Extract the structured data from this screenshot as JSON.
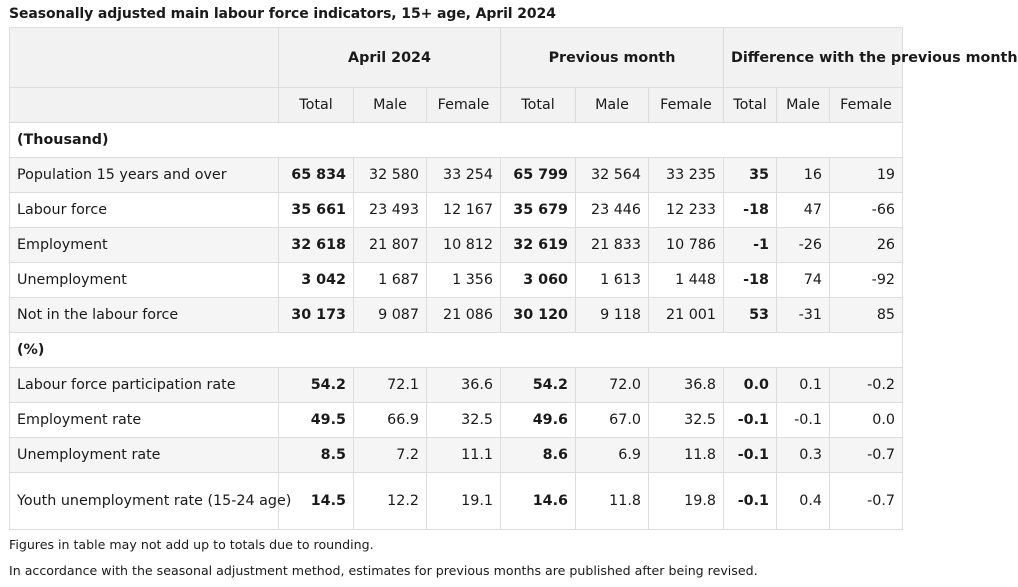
{
  "title": "Seasonally adjusted main labour force indicators, 15+ age, April 2024",
  "table": {
    "group_headers": [
      "April 2024",
      "Previous month",
      "Difference with the previous month"
    ],
    "sub_headers": [
      "Total",
      "Male",
      "Female",
      "Total",
      "Male",
      "Female",
      "Total",
      "Male",
      "Female"
    ],
    "section_thousand": "(Thousand)",
    "section_percent": "(%)",
    "rows": [
      {
        "label": "Population 15 years and over",
        "cells": [
          "65 834",
          "32 580",
          "33 254",
          "65 799",
          "32 564",
          "33 235",
          "35",
          "16",
          "19"
        ]
      },
      {
        "label": "Labour force",
        "cells": [
          "35 661",
          "23 493",
          "12 167",
          "35 679",
          "23 446",
          "12 233",
          "-18",
          "47",
          "-66"
        ]
      },
      {
        "label": "Employment",
        "cells": [
          "32 618",
          "21 807",
          "10 812",
          "32 619",
          "21 833",
          "10 786",
          "-1",
          "-26",
          "26"
        ]
      },
      {
        "label": "Unemployment",
        "cells": [
          "3 042",
          "1 687",
          "1 356",
          "3 060",
          "1 613",
          "1 448",
          "-18",
          "74",
          "-92"
        ]
      },
      {
        "label": "Not in the labour force",
        "cells": [
          "30 173",
          "9 087",
          "21 086",
          "30 120",
          "9 118",
          "21 001",
          "53",
          "-31",
          "85"
        ]
      },
      {
        "label": "Labour force participation rate",
        "cells": [
          "54.2",
          "72.1",
          "36.6",
          "54.2",
          "72.0",
          "36.8",
          "0.0",
          "0.1",
          "-0.2"
        ]
      },
      {
        "label": "Employment rate",
        "cells": [
          "49.5",
          "66.9",
          "32.5",
          "49.6",
          "67.0",
          "32.5",
          "-0.1",
          "-0.1",
          "0.0"
        ]
      },
      {
        "label": "Unemployment rate",
        "cells": [
          "8.5",
          "7.2",
          "11.1",
          "8.6",
          "6.9",
          "11.8",
          "-0.1",
          "0.3",
          "-0.7"
        ]
      },
      {
        "label": "Youth unemployment rate (15-24 age)",
        "cells": [
          "14.5",
          "12.2",
          "19.1",
          "14.6",
          "11.8",
          "19.8",
          "-0.1",
          "0.4",
          "-0.7"
        ]
      }
    ]
  },
  "notes": {
    "rounding": "Figures in table may not add up to totals due to rounding.",
    "revision": "In accordance with the seasonal adjustment method, estimates for previous months are published after being revised."
  },
  "colors": {
    "header_bg": "#f2f2f2",
    "zebra_bg": "#f5f5f5",
    "border": "#dcdcdc"
  }
}
